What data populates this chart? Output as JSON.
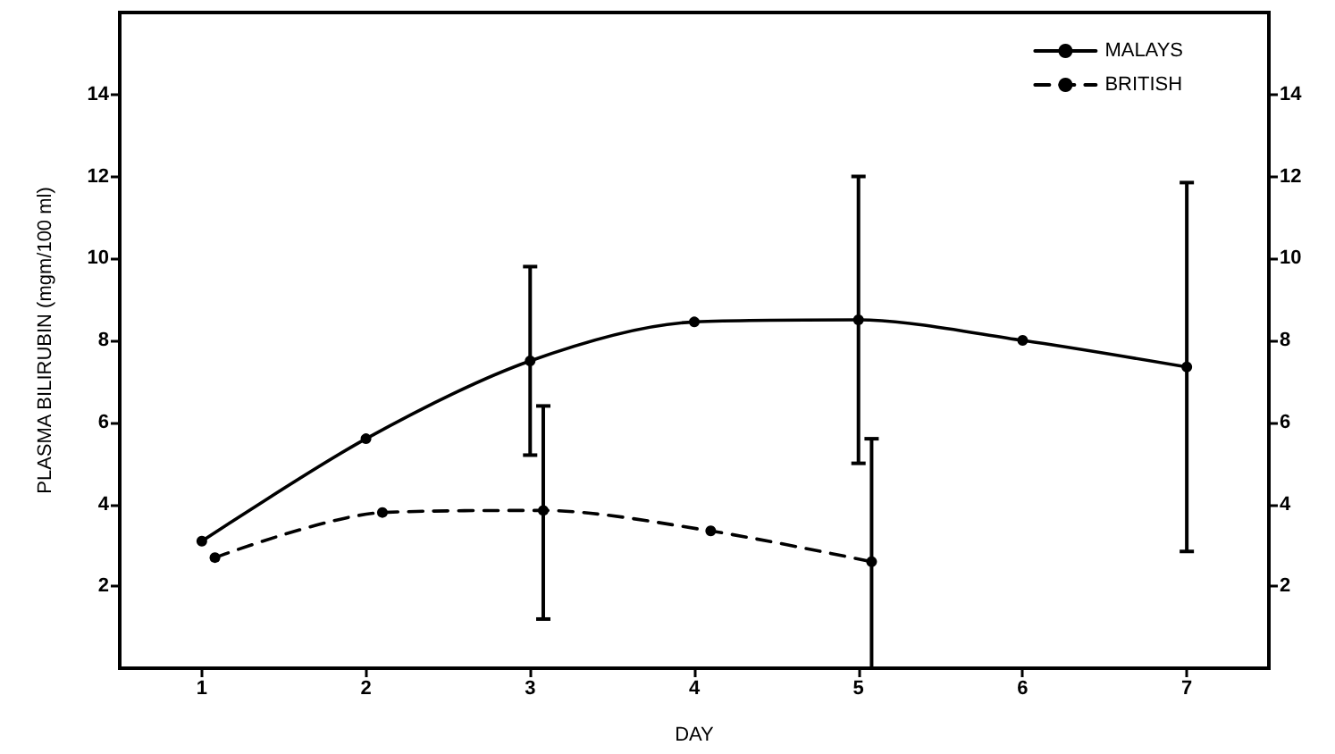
{
  "chart_data": {
    "type": "line",
    "xlabel": "DAY",
    "ylabel": "PLASMA BILIRUBIN (mgm/100 ml)",
    "xlim": [
      0.5,
      7.5
    ],
    "xticks": [
      1,
      2,
      3,
      4,
      5,
      6,
      7
    ],
    "ylim": [
      0,
      16
    ],
    "yticks": [
      2,
      4,
      6,
      8,
      10,
      12,
      14
    ],
    "y2lim": [
      0,
      16
    ],
    "y2ticks": [
      2,
      4,
      6,
      8,
      10,
      12,
      14
    ],
    "legend": "top right",
    "marker": "circle",
    "series": [
      {
        "name": "MALAYS",
        "color": "#000000",
        "line_style": "solid",
        "x": [
          1,
          2,
          3,
          4,
          5,
          6,
          7
        ],
        "values": [
          3.1,
          5.6,
          7.5,
          8.45,
          8.5,
          8.0,
          7.35
        ],
        "errors": [
          null,
          null,
          [
            5.2,
            9.8
          ],
          null,
          [
            5.0,
            12.0
          ],
          null,
          [
            2.85,
            11.85
          ]
        ]
      },
      {
        "name": "BRITISH",
        "color": "#000000",
        "line_style": "dashed",
        "x": [
          1.08,
          2.1,
          3.08,
          4.1,
          5.08
        ],
        "values": [
          2.7,
          3.8,
          3.85,
          3.35,
          2.6
        ],
        "errors": [
          null,
          null,
          [
            1.2,
            6.4
          ],
          null,
          [
            0,
            5.6
          ]
        ]
      }
    ]
  }
}
